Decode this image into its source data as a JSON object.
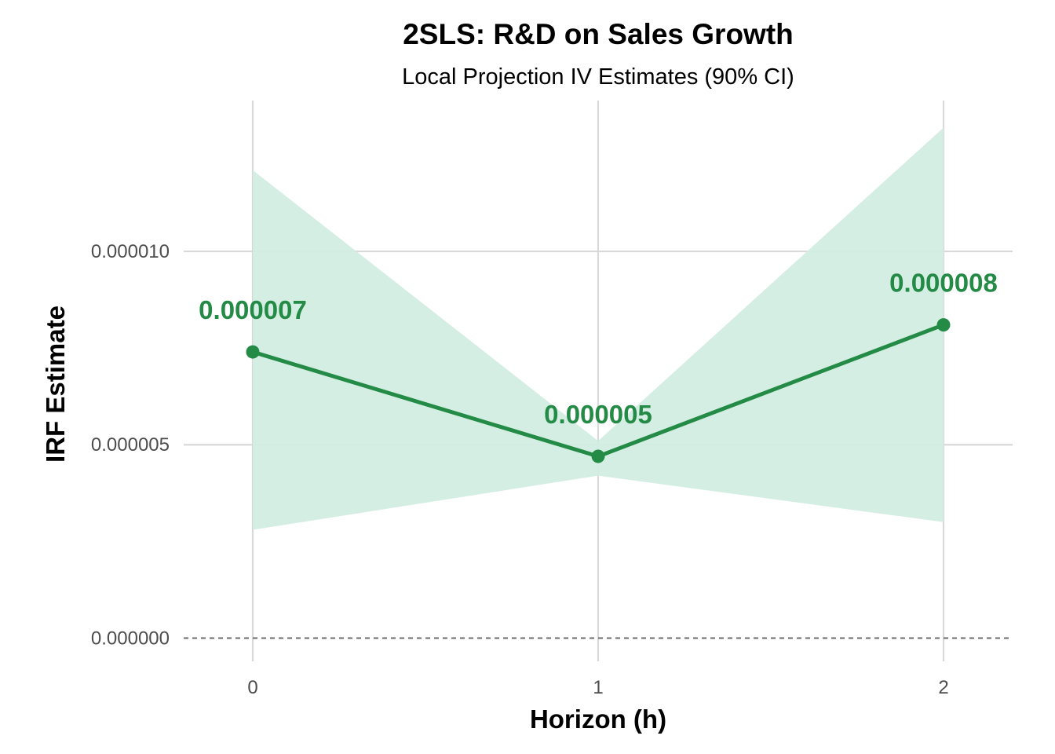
{
  "chart_data": {
    "type": "line",
    "title": "2SLS: R&D on Sales Growth",
    "subtitle": "Local Projection IV Estimates (90% CI)",
    "xlabel": "Horizon (h)",
    "ylabel": "IRF Estimate",
    "x": [
      0,
      1,
      2
    ],
    "x_tick_labels": [
      "0",
      "1",
      "2"
    ],
    "xlim": [
      -0.2,
      2.2
    ],
    "y_ticks": [
      0.0,
      5e-06,
      1e-05
    ],
    "y_tick_labels": [
      "0.000000",
      "0.000005",
      "0.000010"
    ],
    "ylim": [
      -6e-07,
      1.39e-05
    ],
    "series": [
      {
        "values": [
          7.4e-06,
          4.7e-06,
          8.1e-06
        ],
        "ci_lower": [
          2.8e-06,
          4.2e-06,
          3e-06
        ],
        "ci_upper": [
          1.21e-05,
          5.1e-06,
          1.32e-05
        ],
        "data_labels": [
          "0.000007",
          "0.000005",
          "0.000008"
        ]
      }
    ],
    "reference_line": {
      "y": 0,
      "style": "dashed"
    },
    "grid": true,
    "legend": "none",
    "colors": {
      "line": "#238b45",
      "ribbon": "#d3ede3",
      "grid": "#d9d9d9",
      "reference": "#666666"
    }
  }
}
